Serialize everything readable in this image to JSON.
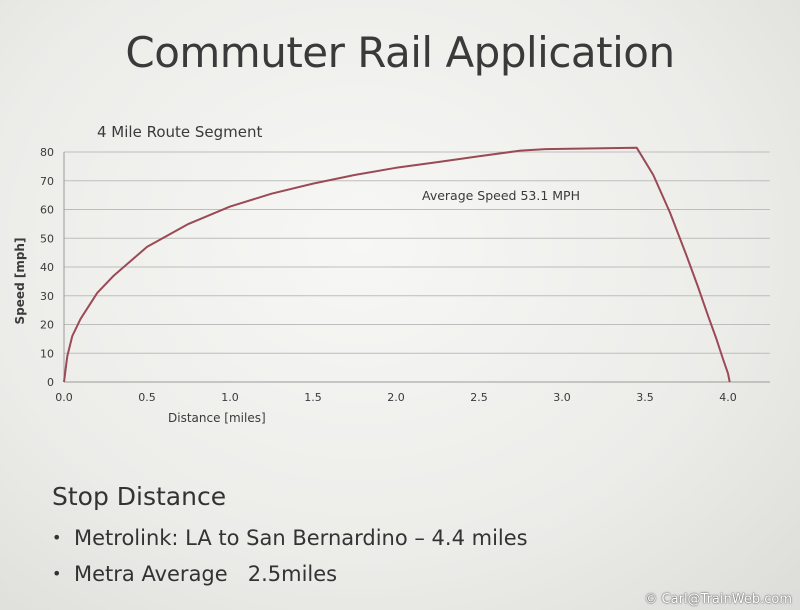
{
  "slide": {
    "title": "Commuter Rail Application",
    "copyright": "© Carl@TrainWeb.com"
  },
  "chart_data": {
    "type": "line",
    "title": "4 Mile Route Segment",
    "xlabel": "Distance [miles]",
    "ylabel": "Speed [mph]",
    "xlim": [
      0,
      4.0
    ],
    "ylim": [
      0,
      80
    ],
    "x_ticks": [
      "0.0",
      "0.5",
      "1.0",
      "1.5",
      "2.0",
      "2.5",
      "3.0",
      "3.5",
      "4.0"
    ],
    "y_ticks": [
      "0",
      "10",
      "20",
      "30",
      "40",
      "50",
      "60",
      "70",
      "80"
    ],
    "grid": "horizontal",
    "annotation": "Average Speed 53.1 MPH",
    "line_color": "#9a4a55",
    "series": [
      {
        "x": [
          0,
          0.02,
          0.05,
          0.1,
          0.2,
          0.3,
          0.5,
          0.75,
          1.0,
          1.25,
          1.5,
          1.75,
          2.0,
          2.25,
          2.5,
          2.75,
          2.9,
          3.45,
          3.55,
          3.65,
          3.75,
          3.82,
          3.88,
          3.93,
          3.97,
          4.0,
          4.01
        ],
        "y": [
          0,
          9,
          16,
          22,
          31,
          37,
          47,
          55,
          61,
          65.5,
          69,
          72,
          74.5,
          76.5,
          78.5,
          80.5,
          81,
          81.5,
          72,
          59,
          44,
          33,
          23,
          15,
          8,
          3,
          0
        ]
      }
    ]
  },
  "stop_distance": {
    "heading": "Stop Distance",
    "items": [
      "Metrolink: LA to San Bernardino – 4.4 miles",
      "Metra Average   2.5miles"
    ]
  }
}
